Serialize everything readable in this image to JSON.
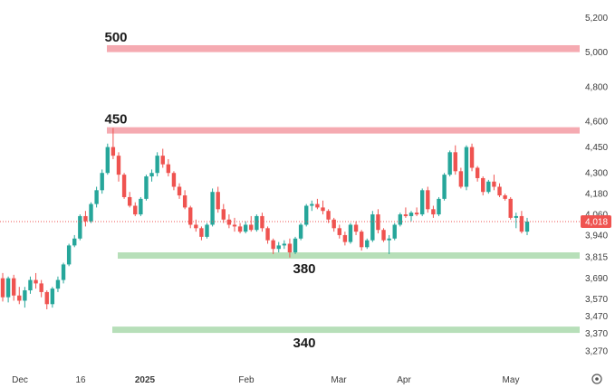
{
  "chart_data": {
    "type": "candlestick",
    "colors": {
      "up": "#26a69a",
      "down": "#ef5350",
      "resistance_zone": "#f5aab1",
      "support_zone": "#b7dfb9",
      "price_tag": "#ef5350"
    },
    "y_axis": {
      "ylim": [
        3180,
        5260
      ],
      "ticks": [
        "5,200",
        "5,000",
        "4,800",
        "4,600",
        "4,450",
        "4,300",
        "4,180",
        "4,060",
        "3,940",
        "3,815",
        "3,690",
        "3,570",
        "3,470",
        "3,370",
        "3,270"
      ]
    },
    "x_axis": {
      "ticks": [
        "Dec",
        "16",
        "2025",
        "Feb",
        "Mar",
        "Apr",
        "May"
      ]
    },
    "last_price": {
      "value": 4018,
      "label": "4,018"
    },
    "zones": [
      {
        "name": "resistance",
        "label": "500",
        "low": 5000,
        "high": 5040
      },
      {
        "name": "resistance",
        "label": "450",
        "low": 4530,
        "high": 4565
      },
      {
        "name": "support",
        "label": "380",
        "low": 3810,
        "high": 3840
      },
      {
        "name": "support",
        "label": "340",
        "low": 3380,
        "high": 3410
      }
    ],
    "candles": [
      [
        3690,
        3720,
        3555,
        3580
      ],
      [
        3580,
        3700,
        3550,
        3690
      ],
      [
        3690,
        3710,
        3560,
        3590
      ],
      [
        3590,
        3640,
        3540,
        3560
      ],
      [
        3560,
        3640,
        3520,
        3620
      ],
      [
        3620,
        3700,
        3600,
        3680
      ],
      [
        3680,
        3720,
        3630,
        3660
      ],
      [
        3660,
        3680,
        3580,
        3610
      ],
      [
        3610,
        3620,
        3510,
        3540
      ],
      [
        3540,
        3640,
        3520,
        3630
      ],
      [
        3630,
        3700,
        3610,
        3680
      ],
      [
        3680,
        3780,
        3660,
        3770
      ],
      [
        3770,
        3890,
        3760,
        3880
      ],
      [
        3880,
        3940,
        3870,
        3920
      ],
      [
        3920,
        4060,
        3910,
        4050
      ],
      [
        4050,
        4080,
        3990,
        4020
      ],
      [
        4020,
        4130,
        4010,
        4120
      ],
      [
        4120,
        4220,
        4100,
        4200
      ],
      [
        4200,
        4320,
        4180,
        4300
      ],
      [
        4300,
        4470,
        4290,
        4450
      ],
      [
        4450,
        4560,
        4380,
        4400
      ],
      [
        4400,
        4420,
        4250,
        4290
      ],
      [
        4290,
        4300,
        4150,
        4160
      ],
      [
        4160,
        4190,
        4100,
        4110
      ],
      [
        4110,
        4130,
        4050,
        4060
      ],
      [
        4060,
        4160,
        4050,
        4150
      ],
      [
        4150,
        4290,
        4140,
        4280
      ],
      [
        4280,
        4320,
        4250,
        4300
      ],
      [
        4300,
        4420,
        4280,
        4400
      ],
      [
        4400,
        4440,
        4330,
        4350
      ],
      [
        4350,
        4380,
        4280,
        4300
      ],
      [
        4300,
        4310,
        4200,
        4220
      ],
      [
        4220,
        4240,
        4150,
        4170
      ],
      [
        4170,
        4200,
        4090,
        4100
      ],
      [
        4100,
        4110,
        3980,
        4000
      ],
      [
        4000,
        4030,
        3960,
        3980
      ],
      [
        3980,
        3990,
        3910,
        3930
      ],
      [
        3930,
        4010,
        3920,
        4000
      ],
      [
        4000,
        4210,
        3990,
        4190
      ],
      [
        4190,
        4220,
        4070,
        4090
      ],
      [
        4090,
        4120,
        4010,
        4030
      ],
      [
        4030,
        4060,
        3980,
        4000
      ],
      [
        4000,
        4040,
        3960,
        3990
      ],
      [
        3990,
        4010,
        3950,
        3960
      ],
      [
        3960,
        4020,
        3950,
        4000
      ],
      [
        4000,
        4050,
        3960,
        3970
      ],
      [
        3970,
        4060,
        3960,
        4050
      ],
      [
        4050,
        4070,
        3960,
        3980
      ],
      [
        3980,
        3990,
        3890,
        3910
      ],
      [
        3910,
        3920,
        3830,
        3860
      ],
      [
        3860,
        3900,
        3840,
        3880
      ],
      [
        3880,
        3910,
        3860,
        3890
      ],
      [
        3890,
        3920,
        3810,
        3840
      ],
      [
        3840,
        3930,
        3830,
        3920
      ],
      [
        3920,
        4010,
        3910,
        4000
      ],
      [
        4000,
        4120,
        3990,
        4110
      ],
      [
        4110,
        4140,
        4080,
        4120
      ],
      [
        4120,
        4150,
        4090,
        4100
      ],
      [
        4100,
        4140,
        4060,
        4080
      ],
      [
        4080,
        4090,
        4010,
        4030
      ],
      [
        4030,
        4040,
        3960,
        3980
      ],
      [
        3980,
        4000,
        3920,
        3940
      ],
      [
        3940,
        3960,
        3880,
        3900
      ],
      [
        3900,
        4010,
        3890,
        4000
      ],
      [
        4000,
        4020,
        3940,
        3960
      ],
      [
        3960,
        3970,
        3850,
        3870
      ],
      [
        3870,
        3920,
        3860,
        3910
      ],
      [
        3910,
        4080,
        3900,
        4060
      ],
      [
        4060,
        4090,
        3950,
        3970
      ],
      [
        3970,
        3980,
        3900,
        3910
      ],
      [
        3910,
        3940,
        3830,
        3920
      ],
      [
        3920,
        4010,
        3910,
        4000
      ],
      [
        4000,
        4070,
        3990,
        4060
      ],
      [
        4060,
        4100,
        4040,
        4050
      ],
      [
        4050,
        4080,
        4020,
        4070
      ],
      [
        4070,
        4100,
        4050,
        4060
      ],
      [
        4060,
        4210,
        4050,
        4200
      ],
      [
        4200,
        4220,
        4070,
        4090
      ],
      [
        4090,
        4110,
        4040,
        4060
      ],
      [
        4060,
        4160,
        4050,
        4150
      ],
      [
        4150,
        4300,
        4140,
        4290
      ],
      [
        4290,
        4430,
        4280,
        4420
      ],
      [
        4420,
        4460,
        4290,
        4310
      ],
      [
        4310,
        4330,
        4210,
        4220
      ],
      [
        4220,
        4460,
        4200,
        4450
      ],
      [
        4450,
        4470,
        4310,
        4330
      ],
      [
        4330,
        4340,
        4250,
        4270
      ],
      [
        4270,
        4280,
        4170,
        4190
      ],
      [
        4190,
        4260,
        4180,
        4250
      ],
      [
        4250,
        4290,
        4200,
        4220
      ],
      [
        4220,
        4240,
        4160,
        4170
      ],
      [
        4170,
        4180,
        4140,
        4150
      ],
      [
        4150,
        4160,
        4030,
        4040
      ],
      [
        4040,
        4070,
        3980,
        4050
      ],
      [
        4050,
        4080,
        3950,
        3960
      ],
      [
        3960,
        4040,
        3940,
        4018
      ]
    ]
  }
}
